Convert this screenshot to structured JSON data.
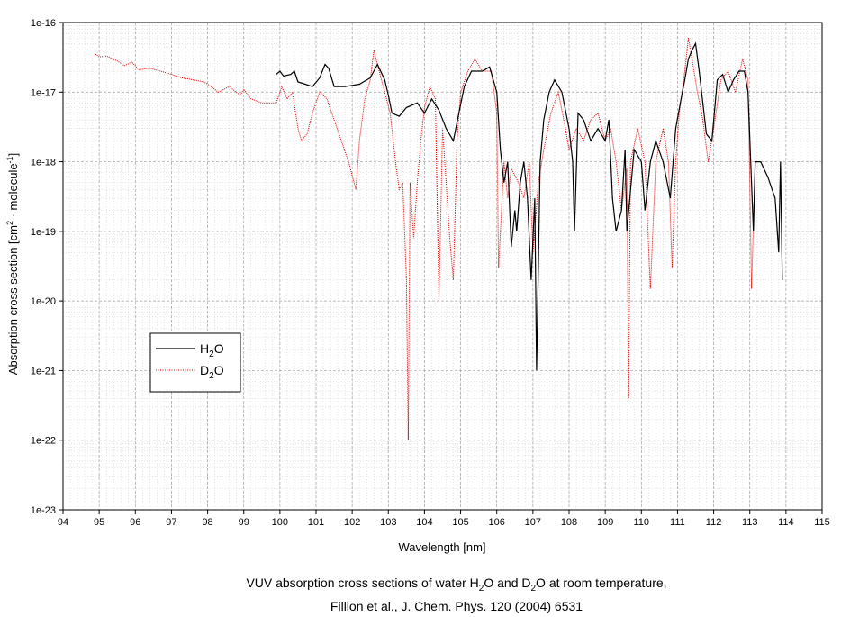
{
  "chart_data": {
    "type": "line",
    "xlabel": "Wavelength [nm]",
    "ylabel": {
      "main": "Absorption cross section [cm",
      "sup1": "2",
      "mid": " · molecule",
      "sup2": "-1",
      "end": "]"
    },
    "xlim": [
      94,
      115
    ],
    "ylim": [
      1e-23,
      1e-16
    ],
    "y_scale": "log",
    "grid": true,
    "legend_position": "middle-left",
    "x_ticks": [
      "94",
      "95",
      "96",
      "97",
      "98",
      "99",
      "100",
      "101",
      "102",
      "103",
      "104",
      "105",
      "106",
      "107",
      "108",
      "109",
      "110",
      "111",
      "112",
      "113",
      "114",
      "115"
    ],
    "y_ticks": [
      "1e-23",
      "1e-22",
      "1e-21",
      "1e-20",
      "1e-19",
      "1e-18",
      "1e-17",
      "1e-16"
    ],
    "legend": [
      {
        "pre": "H",
        "sub": "2",
        "post": "O"
      },
      {
        "pre": "D",
        "sub": "2",
        "post": "O"
      }
    ],
    "caption": {
      "line1_a": "VUV absorption cross sections of water H",
      "line1_sub1": "2",
      "line1_b": "O and D",
      "line1_sub2": "2",
      "line1_c": "O at room temperature,",
      "line2": "Fillion et al., J. Chem. Phys. 120 (2004) 6531"
    },
    "series": [
      {
        "name": "H2O",
        "color": "#000000",
        "style": "solid",
        "points": [
          [
            99.9,
            1.8e-17
          ],
          [
            100.0,
            2e-17
          ],
          [
            100.1,
            1.7e-17
          ],
          [
            100.3,
            1.8e-17
          ],
          [
            100.4,
            2e-17
          ],
          [
            100.5,
            1.4e-17
          ],
          [
            100.7,
            1.3e-17
          ],
          [
            100.9,
            1.2e-17
          ],
          [
            101.1,
            1.6e-17
          ],
          [
            101.25,
            2.5e-17
          ],
          [
            101.35,
            2.2e-17
          ],
          [
            101.5,
            1.2e-17
          ],
          [
            101.8,
            1.2e-17
          ],
          [
            102.2,
            1.3e-17
          ],
          [
            102.5,
            1.6e-17
          ],
          [
            102.7,
            2.5e-17
          ],
          [
            102.9,
            1.5e-17
          ],
          [
            103.0,
            9e-18
          ],
          [
            103.1,
            5e-18
          ],
          [
            103.3,
            4.5e-18
          ],
          [
            103.5,
            6e-18
          ],
          [
            103.8,
            7e-18
          ],
          [
            104.0,
            5e-18
          ],
          [
            104.2,
            8e-18
          ],
          [
            104.4,
            5.5e-18
          ],
          [
            104.6,
            3e-18
          ],
          [
            104.8,
            2e-18
          ],
          [
            104.95,
            5e-18
          ],
          [
            105.1,
            1.2e-17
          ],
          [
            105.3,
            2e-17
          ],
          [
            105.6,
            2e-17
          ],
          [
            105.8,
            2.3e-17
          ],
          [
            106.0,
            1e-17
          ],
          [
            106.1,
            1.5e-18
          ],
          [
            106.2,
            5e-19
          ],
          [
            106.3,
            1e-18
          ],
          [
            106.4,
            6e-20
          ],
          [
            106.5,
            2e-19
          ],
          [
            106.55,
            1e-19
          ],
          [
            106.65,
            5e-19
          ],
          [
            106.75,
            1e-18
          ],
          [
            106.85,
            3e-19
          ],
          [
            106.95,
            2e-20
          ],
          [
            107.05,
            3e-19
          ],
          [
            107.1,
            1e-21
          ],
          [
            107.2,
            1e-18
          ],
          [
            107.3,
            4e-18
          ],
          [
            107.45,
            1e-17
          ],
          [
            107.6,
            1.5e-17
          ],
          [
            107.8,
            1e-17
          ],
          [
            108.0,
            3e-18
          ],
          [
            108.1,
            1e-18
          ],
          [
            108.15,
            1e-19
          ],
          [
            108.25,
            5e-18
          ],
          [
            108.4,
            4e-18
          ],
          [
            108.6,
            2e-18
          ],
          [
            108.8,
            3e-18
          ],
          [
            109.0,
            2e-18
          ],
          [
            109.1,
            4e-18
          ],
          [
            109.2,
            3e-19
          ],
          [
            109.3,
            1e-19
          ],
          [
            109.45,
            2e-19
          ],
          [
            109.55,
            1.5e-18
          ],
          [
            109.6,
            1e-19
          ],
          [
            109.8,
            1.5e-18
          ],
          [
            110.0,
            1e-18
          ],
          [
            110.1,
            2e-19
          ],
          [
            110.25,
            1e-18
          ],
          [
            110.4,
            2e-18
          ],
          [
            110.6,
            1e-18
          ],
          [
            110.8,
            3e-19
          ],
          [
            110.95,
            3e-18
          ],
          [
            111.1,
            8e-18
          ],
          [
            111.2,
            1.5e-17
          ],
          [
            111.3,
            3e-17
          ],
          [
            111.4,
            4e-17
          ],
          [
            111.5,
            5e-17
          ],
          [
            111.6,
            2e-17
          ],
          [
            111.8,
            2.5e-18
          ],
          [
            111.95,
            2e-18
          ],
          [
            112.1,
            1.5e-17
          ],
          [
            112.25,
            1.8e-17
          ],
          [
            112.4,
            1e-17
          ],
          [
            112.55,
            1.5e-17
          ],
          [
            112.7,
            2e-17
          ],
          [
            112.85,
            2e-17
          ],
          [
            112.95,
            1e-17
          ],
          [
            113.1,
            1e-19
          ],
          [
            113.15,
            1e-18
          ],
          [
            113.3,
            1e-18
          ],
          [
            113.5,
            6e-19
          ],
          [
            113.7,
            3e-19
          ],
          [
            113.8,
            5e-20
          ],
          [
            113.85,
            1e-18
          ],
          [
            113.9,
            2e-20
          ]
        ]
      },
      {
        "name": "D2O",
        "color": "#e00000",
        "style": "dotted",
        "points": [
          [
            94.9,
            3.5e-17
          ],
          [
            95.0,
            3.2e-17
          ],
          [
            95.2,
            3.3e-17
          ],
          [
            95.5,
            2.8e-17
          ],
          [
            95.7,
            2.4e-17
          ],
          [
            95.9,
            2.7e-17
          ],
          [
            96.1,
            2.1e-17
          ],
          [
            96.4,
            2.2e-17
          ],
          [
            96.7,
            2e-17
          ],
          [
            97.0,
            1.8e-17
          ],
          [
            97.3,
            1.6e-17
          ],
          [
            97.6,
            1.5e-17
          ],
          [
            97.9,
            1.4e-17
          ],
          [
            98.1,
            1.2e-17
          ],
          [
            98.3,
            1e-17
          ],
          [
            98.6,
            1.2e-17
          ],
          [
            98.9,
            9e-18
          ],
          [
            99.0,
            1.1e-17
          ],
          [
            99.2,
            8e-18
          ],
          [
            99.5,
            7e-18
          ],
          [
            99.9,
            7e-18
          ],
          [
            100.05,
            1.2e-17
          ],
          [
            100.2,
            8e-18
          ],
          [
            100.35,
            1e-17
          ],
          [
            100.5,
            3e-18
          ],
          [
            100.6,
            2e-18
          ],
          [
            100.75,
            2.5e-18
          ],
          [
            100.9,
            5e-18
          ],
          [
            101.1,
            1e-17
          ],
          [
            101.3,
            8e-18
          ],
          [
            101.5,
            4e-18
          ],
          [
            101.7,
            2e-18
          ],
          [
            101.9,
            1e-18
          ],
          [
            102.1,
            4e-19
          ],
          [
            102.2,
            2e-18
          ],
          [
            102.35,
            8e-18
          ],
          [
            102.5,
            1.5e-17
          ],
          [
            102.6,
            4e-17
          ],
          [
            102.7,
            2.5e-17
          ],
          [
            102.9,
            1e-17
          ],
          [
            103.05,
            5e-18
          ],
          [
            103.2,
            1e-18
          ],
          [
            103.3,
            4e-19
          ],
          [
            103.4,
            5e-19
          ],
          [
            103.5,
            2e-20
          ],
          [
            103.55,
            1e-22
          ],
          [
            103.6,
            5e-19
          ],
          [
            103.7,
            8e-20
          ],
          [
            103.8,
            5e-19
          ],
          [
            103.9,
            2e-18
          ],
          [
            104.0,
            6e-18
          ],
          [
            104.15,
            1.2e-17
          ],
          [
            104.3,
            8e-18
          ],
          [
            104.4,
            1e-20
          ],
          [
            104.5,
            3e-18
          ],
          [
            104.6,
            5e-19
          ],
          [
            104.7,
            8e-20
          ],
          [
            104.8,
            2e-20
          ],
          [
            104.9,
            2e-18
          ],
          [
            105.0,
            1e-17
          ],
          [
            105.2,
            2e-17
          ],
          [
            105.4,
            3e-17
          ],
          [
            105.6,
            2e-17
          ],
          [
            105.85,
            2e-17
          ],
          [
            106.0,
            5e-18
          ],
          [
            106.05,
            3e-20
          ],
          [
            106.2,
            1e-18
          ],
          [
            106.3,
            3e-19
          ],
          [
            106.4,
            8e-19
          ],
          [
            106.6,
            5e-19
          ],
          [
            106.75,
            3e-19
          ],
          [
            106.9,
            1e-18
          ],
          [
            107.0,
            5e-20
          ],
          [
            107.15,
            5e-19
          ],
          [
            107.3,
            1.5e-18
          ],
          [
            107.5,
            5e-18
          ],
          [
            107.7,
            1e-17
          ],
          [
            107.9,
            3e-18
          ],
          [
            108.0,
            1.5e-18
          ],
          [
            108.2,
            3e-18
          ],
          [
            108.4,
            2e-18
          ],
          [
            108.6,
            4e-18
          ],
          [
            108.8,
            5e-18
          ],
          [
            109.0,
            2e-18
          ],
          [
            109.15,
            3e-18
          ],
          [
            109.3,
            1e-18
          ],
          [
            109.45,
            2e-19
          ],
          [
            109.6,
            8e-19
          ],
          [
            109.65,
            4e-22
          ],
          [
            109.7,
            1e-18
          ],
          [
            109.9,
            3e-18
          ],
          [
            110.1,
            1e-18
          ],
          [
            110.25,
            1.5e-20
          ],
          [
            110.4,
            1e-18
          ],
          [
            110.6,
            3e-18
          ],
          [
            110.75,
            1e-18
          ],
          [
            110.85,
            3e-20
          ],
          [
            110.95,
            1e-18
          ],
          [
            111.05,
            5e-18
          ],
          [
            111.2,
            2e-17
          ],
          [
            111.3,
            6e-17
          ],
          [
            111.4,
            3e-17
          ],
          [
            111.55,
            1e-17
          ],
          [
            111.7,
            4e-18
          ],
          [
            111.85,
            1e-18
          ],
          [
            112.0,
            3e-18
          ],
          [
            112.2,
            1.5e-17
          ],
          [
            112.4,
            2e-17
          ],
          [
            112.6,
            1e-17
          ],
          [
            112.8,
            3e-17
          ],
          [
            112.95,
            1.5e-17
          ],
          [
            113.05,
            1.5e-20
          ],
          [
            113.15,
            1e-18
          ]
        ]
      }
    ]
  }
}
